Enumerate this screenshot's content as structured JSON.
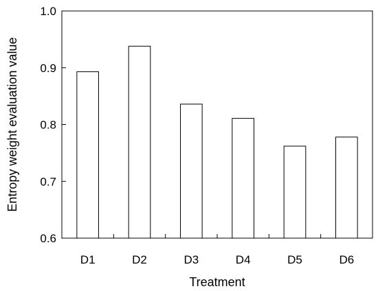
{
  "chart_data": {
    "type": "bar",
    "title": "",
    "xlabel": "Treatment",
    "ylabel": "Entropy weight evaluation value",
    "categories": [
      "D1",
      "D2",
      "D3",
      "D4",
      "D5",
      "D6"
    ],
    "values": [
      0.893,
      0.938,
      0.836,
      0.811,
      0.762,
      0.778
    ],
    "ylim": [
      0.6,
      1.0
    ],
    "yticks": [
      0.6,
      0.7,
      0.8,
      0.9,
      1.0
    ],
    "ytick_labels": [
      "0.6",
      "0.7",
      "0.8",
      "0.9",
      "1.0"
    ],
    "grid": false,
    "legend": "none",
    "bar_fill": "#ffffff",
    "bar_stroke": "#000000"
  }
}
